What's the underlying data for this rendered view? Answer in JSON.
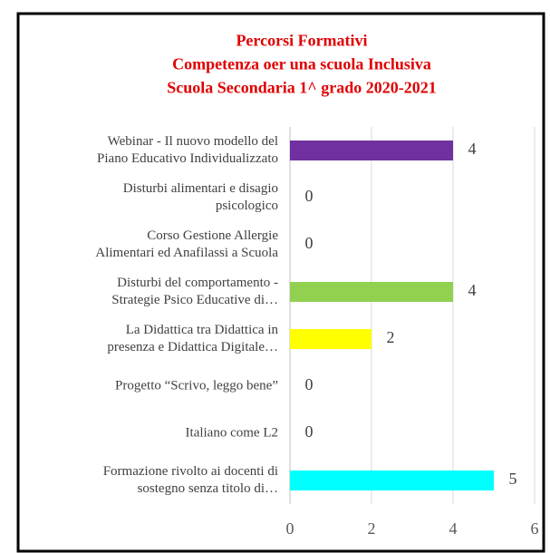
{
  "chart_data": {
    "type": "bar",
    "orientation": "horizontal",
    "title": [
      "Percorsi Formativi",
      "Competenza oer una scuola Inclusiva",
      "Scuola Secondaria 1^ grado 2020-2021"
    ],
    "categories": [
      "Webinar  - Il nuovo modello del\nPiano Educativo Individualizzato",
      "Disturbi alimentari e disagio\npsicologico",
      "Corso Gestione Allergie\nAlimentari ed Anafilassi a Scuola",
      "Disturbi del comportamento -\nStrategie Psico Educative di…",
      "La Didattica tra Didattica in\npresenza e Didattica Digitale…",
      "Progetto “Scrivo, leggo bene”",
      "Italiano come L2",
      "Formazione rivolto ai docenti di\nsostegno senza titolo di…"
    ],
    "values": [
      4,
      0,
      0,
      4,
      2,
      0,
      0,
      5
    ],
    "colors": [
      "#7030a0",
      null,
      null,
      "#92d050",
      "#ffff00",
      null,
      null,
      "#00ffff"
    ],
    "xlim": [
      0,
      6
    ],
    "xticks": [
      0,
      2,
      4,
      6
    ],
    "grid": true
  }
}
